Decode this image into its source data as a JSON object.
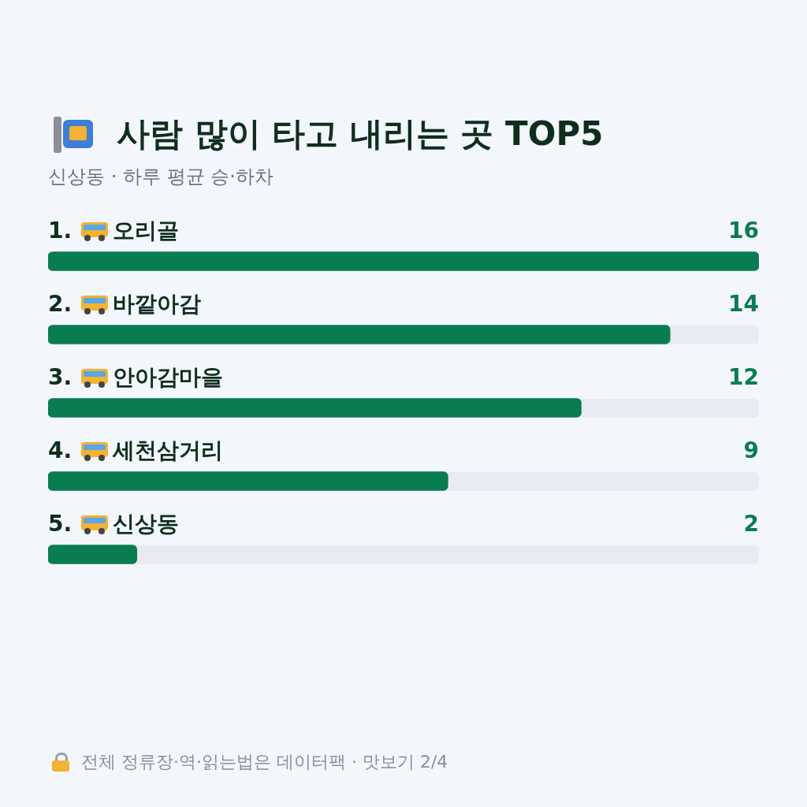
{
  "chart_data": {
    "type": "bar",
    "orientation": "horizontal",
    "title": "사람 많이 타고 내리는 곳 TOP5",
    "subtitle": "신상동 · 하루 평균 승·하차",
    "categories": [
      "1. 오리골",
      "2. 바깥아감",
      "3. 안아감마을",
      "4. 세천삼거리",
      "5. 신상동"
    ],
    "values": [
      16,
      14,
      12,
      9,
      2
    ],
    "color": "#0a7c52",
    "xlim": [
      0,
      16
    ],
    "data_labels": true,
    "annotations": [
      "전체 정류장·역·읽는법은 데이터팩 · 맛보기 2/4"
    ]
  }
}
